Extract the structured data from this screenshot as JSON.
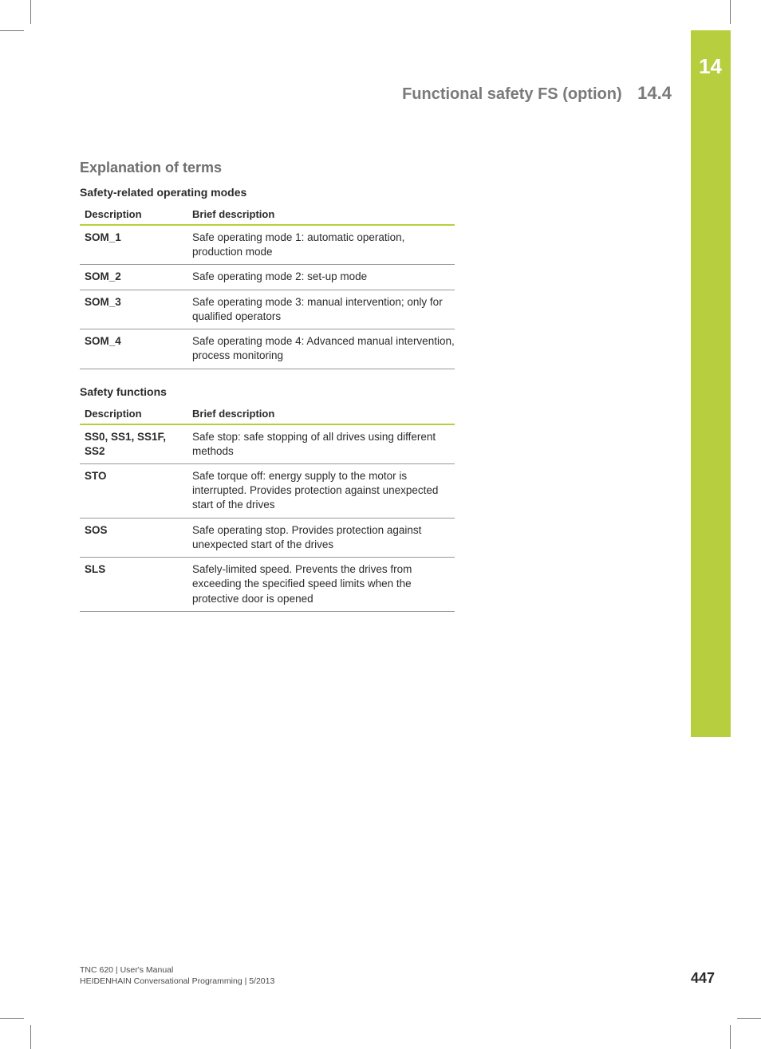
{
  "colors": {
    "accent": "#b7cf3f"
  },
  "chapter": "14",
  "running_head": {
    "title": "Functional safety FS (option)",
    "section": "14.4"
  },
  "h1": "Explanation of terms",
  "tables": [
    {
      "caption": "Safety-related operating modes",
      "columns": [
        "Description",
        "Brief description"
      ],
      "rows": [
        [
          "SOM_1",
          "Safe operating mode 1: automatic operation, production mode"
        ],
        [
          "SOM_2",
          "Safe operating mode 2: set-up mode"
        ],
        [
          "SOM_3",
          "Safe operating mode 3: manual intervention; only for qualified operators"
        ],
        [
          "SOM_4",
          "Safe operating mode 4: Advanced manual intervention, process monitoring"
        ]
      ]
    },
    {
      "caption": "Safety functions",
      "columns": [
        "Description",
        "Brief description"
      ],
      "rows": [
        [
          "SS0, SS1, SS1F, SS2",
          "Safe stop: safe stopping of all drives using different methods"
        ],
        [
          "STO",
          "Safe torque off: energy supply to the motor is interrupted. Provides protection against unexpected start of the drives"
        ],
        [
          "SOS",
          "Safe operating stop. Provides protection against unexpected start of the drives"
        ],
        [
          "SLS",
          "Safely-limited speed. Prevents the drives from exceeding the specified speed limits when the protective door is opened"
        ]
      ]
    }
  ],
  "footer": {
    "line1": "TNC 620 | User's Manual",
    "line2": "HEIDENHAIN Conversational Programming | 5/2013"
  },
  "page_number": "447"
}
